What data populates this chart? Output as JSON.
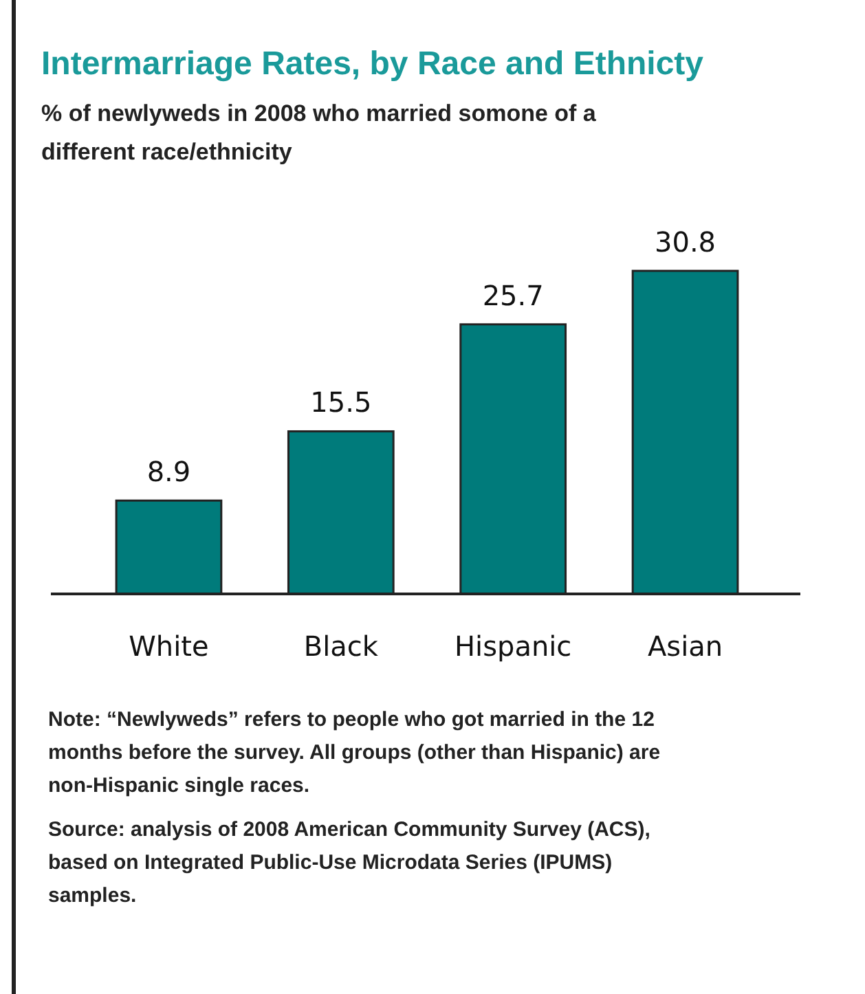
{
  "chart_data": {
    "type": "bar",
    "title": "Intermarriage Rates, by Race and Ethnicty",
    "subtitle": "% of newlyweds in 2008 who married somone of a different race/ethnicity",
    "categories": [
      "White",
      "Black",
      "Hispanic",
      "Asian"
    ],
    "values": [
      8.9,
      15.5,
      25.7,
      30.8
    ],
    "color": "#007b7b",
    "data_labels": true,
    "annotations": [
      "Note: “Newlyweds” refers to people who got married in the 12 months before the survey. All groups (other than Hispanic) are non-Hispanic single races.",
      "Source: analysis of 2008 American Community Survey (ACS), based on Integrated Public-Use Microdata Series (IPUMS) samples."
    ]
  }
}
